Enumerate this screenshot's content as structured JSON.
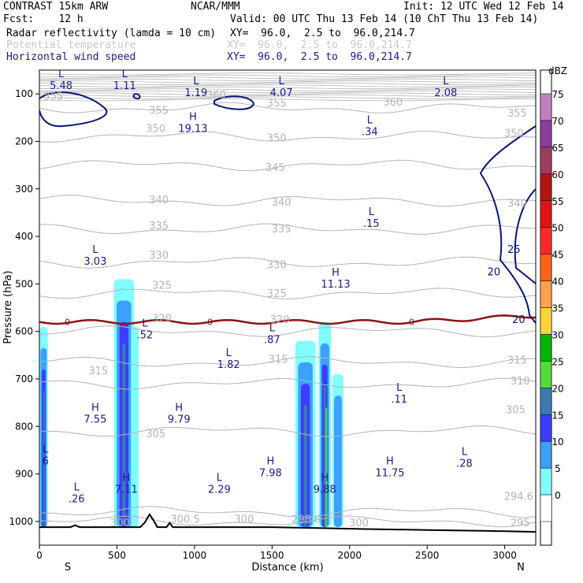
{
  "header": {
    "model": "CONTRAST 15km ARW",
    "org": "NCAR/MMM",
    "init": "Init: 12 UTC Wed 12 Feb 14",
    "fcst": "Fcst:    12 h",
    "valid": "Valid: 00 UTC Thu 13 Feb 14 (10 ChT Thu 13 Feb 14)",
    "fields": [
      {
        "name": "Radar reflectivity (lamda = 10 cm)",
        "xy": "XY=  96.0,  2.5 to  96.0,214.7",
        "color": "#000000"
      },
      {
        "name": "Potential temperature",
        "xy": "XY=  96.0,  2.5 to  96.0,214.7",
        "color": "#c8c8c8"
      },
      {
        "name": "Horizontal wind speed",
        "xy": "XY=  96.0,  2.5 to  96.0,214.7",
        "color": "#1a1a8c"
      }
    ]
  },
  "chart_data": {
    "type": "cross-section",
    "xlabel": "Distance (km)",
    "ylabel": "Pressure (hPa)",
    "xlim": [
      0,
      3200
    ],
    "ylim": [
      1050,
      50
    ],
    "xticks": [
      0,
      500,
      1000,
      1500,
      2000,
      2500,
      3000
    ],
    "yticks": [
      100,
      200,
      300,
      400,
      500,
      600,
      700,
      800,
      900,
      1000
    ],
    "x_end_labels": {
      "left": "S",
      "right": "N"
    },
    "colorbar": {
      "unit": "dBZ",
      "levels": [
        {
          "label": "75",
          "color": "#c080c0"
        },
        {
          "label": "70",
          "color": "#8c3ca0"
        },
        {
          "label": "65",
          "color": "#9c3c5c"
        },
        {
          "label": "60",
          "color": "#b41414"
        },
        {
          "label": "55",
          "color": "#e01414"
        },
        {
          "label": "50",
          "color": "#ff2828"
        },
        {
          "label": "45",
          "color": "#ff6414"
        },
        {
          "label": "40",
          "color": "#ffa050"
        },
        {
          "label": "35",
          "color": "#ffd23c"
        },
        {
          "label": "30",
          "color": "#00b400"
        },
        {
          "label": "25",
          "color": "#50dc3c"
        },
        {
          "label": "20",
          "color": "#3c7ab4"
        },
        {
          "label": "15",
          "color": "#3c3cff"
        },
        {
          "label": "10",
          "color": "#3ca0ff"
        },
        {
          "label": "5",
          "color": "#80ffff"
        },
        {
          "label": "0",
          "color": "#ffffff"
        }
      ]
    },
    "theta_contours": [
      {
        "value": "355",
        "p": 130
      },
      {
        "value": "350",
        "p": 190
      },
      {
        "value": "345",
        "p": 250
      },
      {
        "value": "340",
        "p": 325
      },
      {
        "value": "335",
        "p": 385
      },
      {
        "value": "330",
        "p": 455
      },
      {
        "value": "325",
        "p": 520
      },
      {
        "value": "320",
        "p": 600
      },
      {
        "value": "315",
        "p": 665
      },
      {
        "value": "310",
        "p": 710
      },
      {
        "value": "305",
        "p": 810
      },
      {
        "value": "300",
        "p": 980
      },
      {
        "value": "295",
        "p": 1000
      }
    ],
    "theta_labels": [
      {
        "text": "355",
        "x": 90,
        "p": 112
      },
      {
        "text": "360",
        "x": 1140,
        "p": 110
      },
      {
        "text": "355",
        "x": 1530,
        "p": 127
      },
      {
        "text": "360",
        "x": 2280,
        "p": 125
      },
      {
        "text": "355",
        "x": 3080,
        "p": 148
      },
      {
        "text": "355",
        "x": 770,
        "p": 142
      },
      {
        "text": "350",
        "x": 750,
        "p": 180
      },
      {
        "text": "350",
        "x": 1530,
        "p": 200
      },
      {
        "text": "350",
        "x": 3060,
        "p": 190
      },
      {
        "text": "345",
        "x": 1520,
        "p": 262
      },
      {
        "text": "340",
        "x": 770,
        "p": 330
      },
      {
        "text": "340",
        "x": 1560,
        "p": 335
      },
      {
        "text": "340",
        "x": 3080,
        "p": 338
      },
      {
        "text": "335",
        "x": 770,
        "p": 385
      },
      {
        "text": "335",
        "x": 1560,
        "p": 392
      },
      {
        "text": "330",
        "x": 770,
        "p": 447
      },
      {
        "text": "330",
        "x": 1530,
        "p": 467
      },
      {
        "text": "325",
        "x": 790,
        "p": 510
      },
      {
        "text": "325",
        "x": 1530,
        "p": 528
      },
      {
        "text": "320",
        "x": 790,
        "p": 580
      },
      {
        "text": "320",
        "x": 1550,
        "p": 582
      },
      {
        "text": "315",
        "x": 380,
        "p": 690
      },
      {
        "text": "315",
        "x": 1540,
        "p": 666
      },
      {
        "text": "315",
        "x": 3080,
        "p": 668
      },
      {
        "text": "310",
        "x": 3100,
        "p": 712
      },
      {
        "text": "305",
        "x": 3070,
        "p": 772
      },
      {
        "text": "305",
        "x": 750,
        "p": 823
      },
      {
        "text": "300.5",
        "x": 940,
        "p": 1003
      },
      {
        "text": "300",
        "x": 1320,
        "p": 1003
      },
      {
        "text": "298.6",
        "x": 1720,
        "p": 1003
      },
      {
        "text": "300",
        "x": 2060,
        "p": 1010
      },
      {
        "text": "300",
        "x": 520,
        "p": 1010
      },
      {
        "text": "295",
        "x": 3100,
        "p": 1010
      },
      {
        "text": "294.6",
        "x": 3090,
        "p": 955
      }
    ],
    "freezing_level": {
      "label": "0",
      "p": 580
    },
    "wind_contours": [
      {
        "label": "25",
        "x": 3060,
        "p": 435
      },
      {
        "label": "20",
        "x": 2930,
        "p": 482
      },
      {
        "label": "20",
        "x": 3090,
        "p": 582
      }
    ],
    "highs_lows": [
      {
        "kind": "L",
        "value": "5.48",
        "x": 140,
        "p": 65
      },
      {
        "kind": "L",
        "value": "1.11",
        "x": 550,
        "p": 65
      },
      {
        "kind": "L",
        "value": "1.19",
        "x": 1010,
        "p": 80
      },
      {
        "kind": "L",
        "value": "4.07",
        "x": 1560,
        "p": 80
      },
      {
        "kind": "L",
        "value": "2.08",
        "x": 2620,
        "p": 80
      },
      {
        "kind": "H",
        "value": "19.13",
        "x": 990,
        "p": 155
      },
      {
        "kind": "L",
        "value": ".34",
        "x": 2130,
        "p": 162
      },
      {
        "kind": "L",
        "value": ".15",
        "x": 2140,
        "p": 355
      },
      {
        "kind": "L",
        "value": "3.03",
        "x": 360,
        "p": 435
      },
      {
        "kind": "H",
        "value": "11.13",
        "x": 1910,
        "p": 483
      },
      {
        "kind": "L",
        "value": ".52",
        "x": 680,
        "p": 590
      },
      {
        "kind": "L",
        "value": ".87",
        "x": 1500,
        "p": 600
      },
      {
        "kind": "L",
        "value": "1.82",
        "x": 1220,
        "p": 652
      },
      {
        "kind": "L",
        "value": ".11",
        "x": 2320,
        "p": 725
      },
      {
        "kind": "H",
        "value": "7.55",
        "x": 360,
        "p": 767
      },
      {
        "kind": "H",
        "value": "9.79",
        "x": 900,
        "p": 767
      },
      {
        "kind": "L",
        "value": ".28",
        "x": 2740,
        "p": 860
      },
      {
        "kind": "L",
        "value": "6",
        "x": 40,
        "p": 855
      },
      {
        "kind": "H",
        "value": "7.98",
        "x": 1490,
        "p": 880
      },
      {
        "kind": "H",
        "value": "11.75",
        "x": 2260,
        "p": 880
      },
      {
        "kind": "L",
        "value": ".26",
        "x": 240,
        "p": 935
      },
      {
        "kind": "H",
        "value": "7.11",
        "x": 560,
        "p": 915
      },
      {
        "kind": "L",
        "value": "2.29",
        "x": 1160,
        "p": 915
      },
      {
        "kind": "H",
        "value": "9.88",
        "x": 1840,
        "p": 915
      }
    ],
    "reflectivity_cells": [
      {
        "x0": 0,
        "x1": 55,
        "p_top": 590,
        "dbz_max": 20
      },
      {
        "x0": 480,
        "x1": 610,
        "p_top": 490,
        "dbz_max": 20
      },
      {
        "x0": 590,
        "x1": 640,
        "p_top": 590,
        "dbz_max": 5
      },
      {
        "x0": 1650,
        "x1": 1780,
        "p_top": 620,
        "dbz_max": 20
      },
      {
        "x0": 1800,
        "x1": 1880,
        "p_top": 580,
        "dbz_max": 25
      },
      {
        "x0": 1890,
        "x1": 1960,
        "p_top": 690,
        "dbz_max": 10
      }
    ],
    "terrain": [
      [
        0,
        1012
      ],
      [
        200,
        1012
      ],
      [
        230,
        1008
      ],
      [
        260,
        1012
      ],
      [
        650,
        1012
      ],
      [
        680,
        1002
      ],
      [
        710,
        985
      ],
      [
        740,
        1000
      ],
      [
        760,
        1012
      ],
      [
        820,
        1012
      ],
      [
        840,
        1003
      ],
      [
        860,
        1012
      ],
      [
        1500,
        1012
      ],
      [
        1800,
        1014
      ],
      [
        2100,
        1016
      ],
      [
        2500,
        1018
      ],
      [
        2900,
        1020
      ],
      [
        3200,
        1022
      ]
    ]
  }
}
